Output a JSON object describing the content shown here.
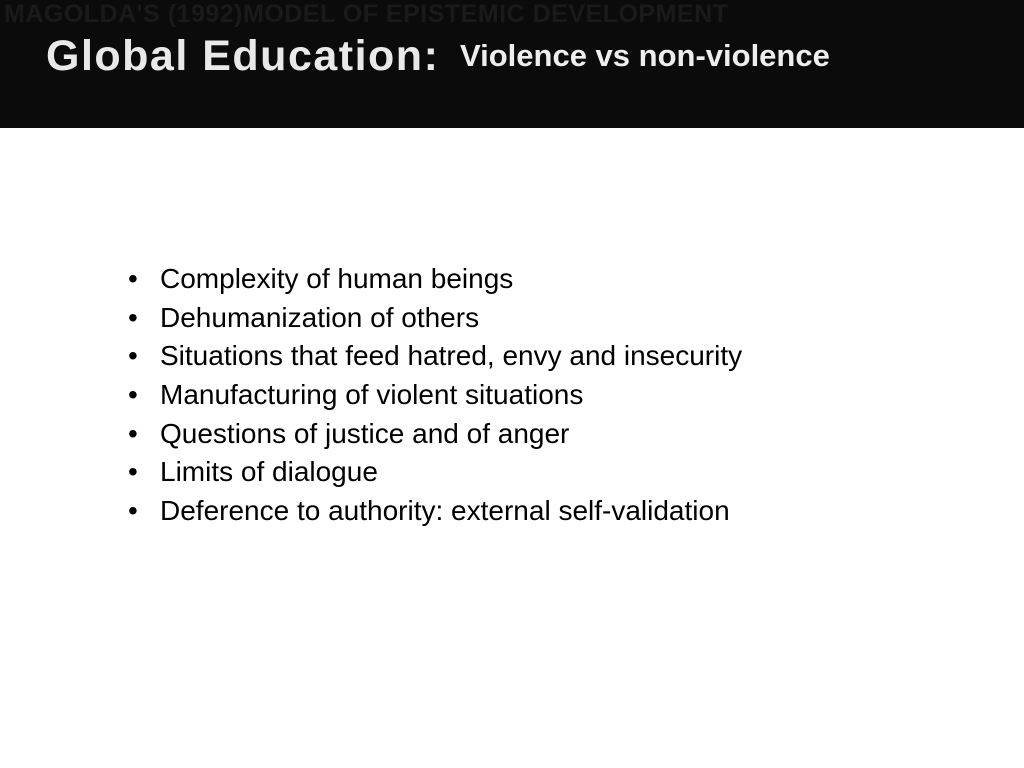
{
  "background_text": "MAGOLDA'S (1992)MODEL OF EPISTEMIC DEVELOPMENT",
  "header": {
    "title_left": "Global Education:",
    "title_right": "Violence vs non-violence",
    "bar_color": "#0c0b0b",
    "text_color": "#e9e9e9"
  },
  "body": {
    "text_color": "#000000",
    "font_size": 28,
    "bullets": [
      "Complexity of human beings",
      "Dehumanization of others",
      "Situations that feed hatred, envy and insecurity",
      "Manufacturing of violent situations",
      "Questions of justice and of anger",
      "Limits of dialogue",
      "Deference to authority: external self-validation"
    ]
  },
  "slide_background": "#ffffff"
}
